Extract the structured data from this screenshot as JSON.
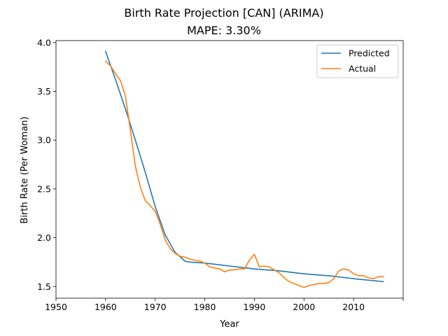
{
  "chart_data": {
    "type": "line",
    "title": "Birth Rate Projection [CAN] (ARIMA)",
    "subtitle": "MAPE: 3.30%",
    "xlabel": "Year",
    "ylabel": "Birth Rate (Per Woman)",
    "xlim": [
      1950,
      2020
    ],
    "ylim": [
      1.38,
      4.02
    ],
    "xticks": [
      1950,
      1960,
      1970,
      1980,
      1990,
      2000,
      2010,
      2020
    ],
    "xtick_labels": [
      "1950",
      "1960",
      "1970",
      "1980",
      "1990",
      "2000",
      "2010",
      ""
    ],
    "yticks": [
      1.5,
      2.0,
      2.5,
      3.0,
      3.5,
      4.0
    ],
    "ytick_labels": [
      "1.5",
      "2.0",
      "2.5",
      "3.0",
      "3.5",
      "4.0"
    ],
    "grid": false,
    "legend_position": "top-right",
    "series": [
      {
        "name": "Predicted",
        "color": "#1f77b4",
        "x": [
          1960,
          1962,
          1964,
          1966,
          1968,
          1970,
          1972,
          1974,
          1976,
          1977,
          1980,
          1985,
          1990,
          1995,
          2000,
          2005,
          2010,
          2016
        ],
        "y": [
          3.91,
          3.62,
          3.32,
          3.0,
          2.67,
          2.32,
          2.03,
          1.85,
          1.76,
          1.75,
          1.74,
          1.71,
          1.68,
          1.66,
          1.63,
          1.61,
          1.58,
          1.55
        ]
      },
      {
        "name": "Actual",
        "color": "#ff7f0e",
        "x": [
          1960,
          1961,
          1962,
          1963,
          1964,
          1965,
          1966,
          1967,
          1968,
          1969,
          1970,
          1971,
          1972,
          1973,
          1974,
          1975,
          1976,
          1977,
          1978,
          1979,
          1980,
          1981,
          1982,
          1983,
          1984,
          1985,
          1986,
          1987,
          1988,
          1989,
          1990,
          1991,
          1992,
          1993,
          1994,
          1995,
          1996,
          1997,
          1998,
          1999,
          2000,
          2001,
          2002,
          2003,
          2004,
          2005,
          2006,
          2007,
          2008,
          2009,
          2010,
          2011,
          2012,
          2013,
          2014,
          2015,
          2016
        ],
        "y": [
          3.81,
          3.76,
          3.68,
          3.61,
          3.45,
          3.1,
          2.73,
          2.52,
          2.38,
          2.33,
          2.27,
          2.14,
          1.98,
          1.89,
          1.84,
          1.81,
          1.8,
          1.78,
          1.77,
          1.76,
          1.74,
          1.7,
          1.69,
          1.68,
          1.65,
          1.67,
          1.67,
          1.68,
          1.68,
          1.77,
          1.83,
          1.7,
          1.71,
          1.7,
          1.67,
          1.64,
          1.59,
          1.55,
          1.53,
          1.51,
          1.49,
          1.51,
          1.52,
          1.53,
          1.53,
          1.54,
          1.58,
          1.66,
          1.68,
          1.67,
          1.63,
          1.61,
          1.61,
          1.59,
          1.58,
          1.6,
          1.6
        ]
      }
    ]
  }
}
